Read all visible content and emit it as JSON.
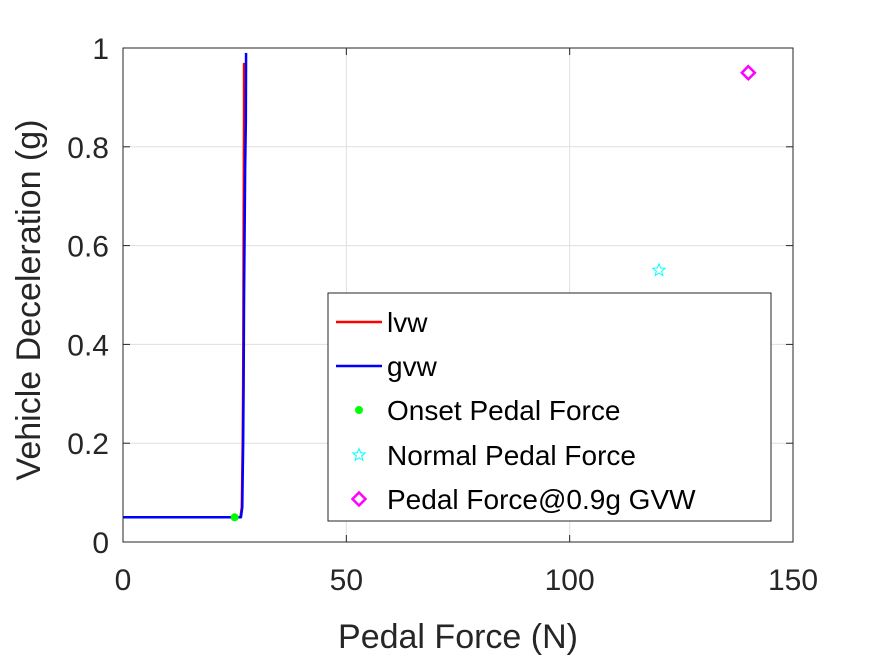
{
  "chart_data": {
    "type": "line",
    "xlabel": "Pedal Force (N)",
    "ylabel": "Vehicle Deceleration (g)",
    "xlim": [
      0,
      150
    ],
    "ylim": [
      0,
      1
    ],
    "xticks": [
      "0",
      "50",
      "100",
      "150"
    ],
    "yticks": [
      "0",
      "0.2",
      "0.4",
      "0.6",
      "0.8",
      "1"
    ],
    "grid": true,
    "legend_location": "bottom-right",
    "series": [
      {
        "name": "lvw",
        "color": "#ff0000",
        "marker": "line",
        "x": [
          0,
          25,
          26.3,
          26.6,
          26.8,
          26.9,
          26.95,
          27.0,
          27.05,
          27.1,
          27.1
        ],
        "y": [
          0.05,
          0.05,
          0.05,
          0.07,
          0.2,
          0.32,
          0.42,
          0.6,
          0.74,
          0.86,
          0.97
        ]
      },
      {
        "name": "gvw",
        "color": "#0000ff",
        "marker": "line",
        "x": [
          0,
          25,
          26.4,
          26.7,
          26.9,
          27.0,
          27.1,
          27.2,
          27.35,
          27.5,
          27.55
        ],
        "y": [
          0.05,
          0.05,
          0.05,
          0.07,
          0.2,
          0.32,
          0.5,
          0.6,
          0.76,
          0.85,
          0.99
        ]
      },
      {
        "name": "Onset Pedal Force",
        "color": "#00ff00",
        "marker": "dot",
        "x": [
          25
        ],
        "y": [
          0.05
        ]
      },
      {
        "name": "Normal Pedal Force",
        "color": "#00ffff",
        "marker": "star",
        "x": [
          120
        ],
        "y": [
          0.55
        ]
      },
      {
        "name": "Pedal Force@0.9g GVW",
        "color": "#ff00ff",
        "marker": "diamond",
        "x": [
          140
        ],
        "y": [
          0.95
        ]
      }
    ]
  }
}
